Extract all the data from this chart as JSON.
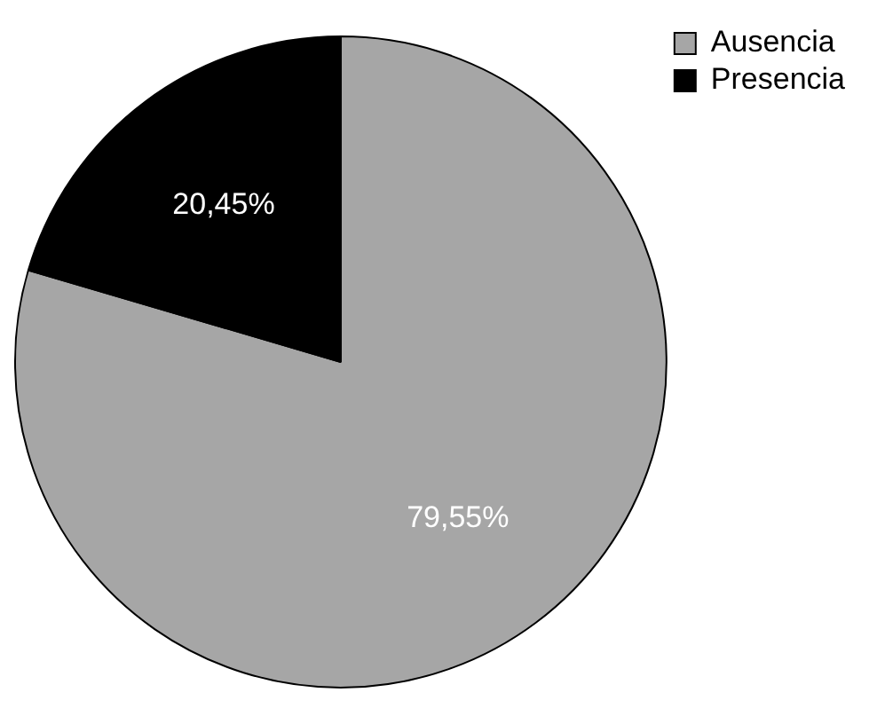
{
  "chart_data": {
    "type": "pie",
    "categories": [
      "Ausencia",
      "Presencia"
    ],
    "values": [
      79.55,
      20.45
    ],
    "colors": [
      "#a6a6a6",
      "#000000"
    ],
    "value_labels": [
      "79,55%",
      "20,45%"
    ],
    "legend": "top right"
  }
}
